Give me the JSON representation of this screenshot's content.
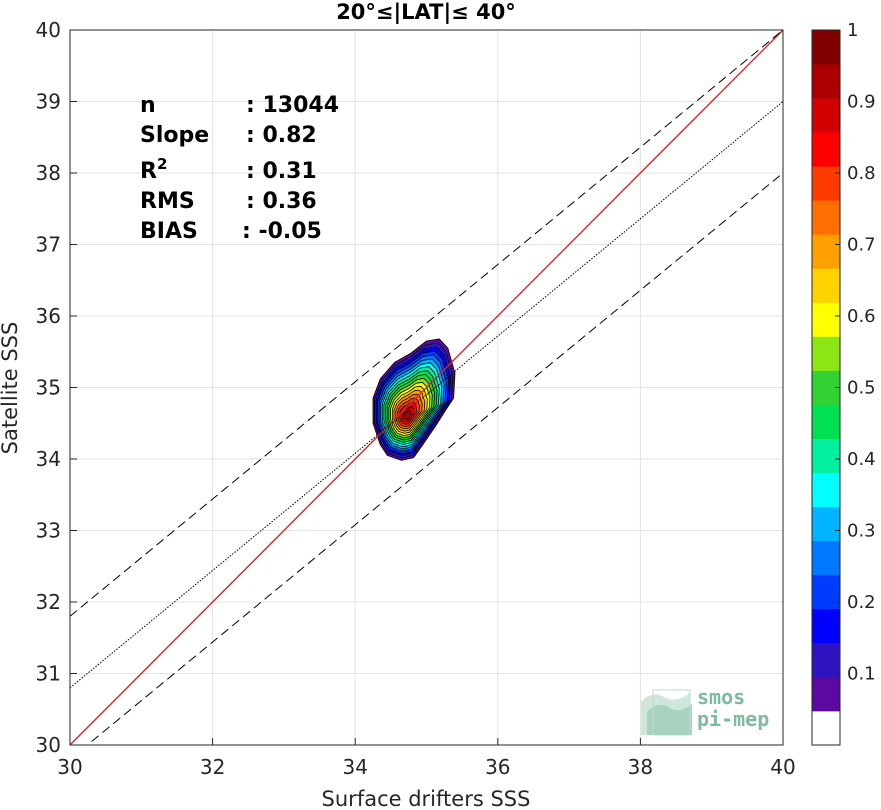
{
  "chart_data": {
    "type": "heatmap",
    "title": "20°≤|LAT|≤ 40°",
    "xlabel": "Surface drifters SSS",
    "ylabel": "Satellite SSS",
    "xlim": [
      30,
      40
    ],
    "ylim": [
      30,
      40
    ],
    "xticks": [
      "30",
      "32",
      "34",
      "36",
      "38",
      "40"
    ],
    "yticks": [
      "30",
      "31",
      "32",
      "33",
      "34",
      "35",
      "36",
      "37",
      "38",
      "39",
      "40"
    ],
    "grid": true,
    "stats": [
      {
        "label": "n",
        "value": ": 13044"
      },
      {
        "label": "Slope",
        "value": ": 0.82"
      },
      {
        "label": "R",
        "sup": "2",
        "value": ": 0.31"
      },
      {
        "label": "RMS",
        "value": ": 0.36"
      },
      {
        "label": "BIAS",
        "value": ": -0.05"
      }
    ],
    "lines": {
      "identity": {
        "color": "#d62728",
        "points": [
          [
            30,
            30
          ],
          [
            40,
            40
          ]
        ]
      },
      "fit": {
        "slope": 0.82,
        "intercept": 6.2,
        "style": "dotted"
      },
      "upper_band": {
        "slope": 0.82,
        "intercept": 7.2,
        "style": "dashed"
      },
      "lower_band": {
        "slope": 0.82,
        "intercept": 5.2,
        "style": "dashed"
      }
    },
    "density": {
      "center": [
        34.7,
        34.62
      ],
      "levels": [
        0.05,
        0.15,
        0.25,
        0.35,
        0.45,
        0.55,
        0.65,
        0.75,
        0.85,
        0.95
      ],
      "outer_contour": [
        [
          34.35,
          34.2
        ],
        [
          34.45,
          34.05
        ],
        [
          34.65,
          33.98
        ],
        [
          34.82,
          34.02
        ],
        [
          34.95,
          34.2
        ],
        [
          35.12,
          34.45
        ],
        [
          35.28,
          34.7
        ],
        [
          35.38,
          34.85
        ],
        [
          35.4,
          35.2
        ],
        [
          35.3,
          35.55
        ],
        [
          35.18,
          35.68
        ],
        [
          35.0,
          35.65
        ],
        [
          34.78,
          35.48
        ],
        [
          34.55,
          35.35
        ],
        [
          34.35,
          35.12
        ],
        [
          34.25,
          34.85
        ],
        [
          34.25,
          34.5
        ]
      ],
      "colorbar": {
        "min": 0,
        "max": 1,
        "ticks": [
          "0.1",
          "0.2",
          "0.3",
          "0.4",
          "0.5",
          "0.6",
          "0.7",
          "0.8",
          "0.9",
          "1"
        ],
        "colors": [
          "#ffffff",
          "#5a0aa0",
          "#2d14c0",
          "#0000ff",
          "#003cff",
          "#0078ff",
          "#00b4ff",
          "#00ffff",
          "#00f0a0",
          "#00e050",
          "#32d232",
          "#8ce614",
          "#ffff00",
          "#ffd200",
          "#ffa000",
          "#ff6e00",
          "#ff3c00",
          "#ff0000",
          "#d20000",
          "#aa0000",
          "#800000"
        ]
      }
    }
  },
  "logo": {
    "line1": "smos",
    "line2": "pi-mep"
  }
}
